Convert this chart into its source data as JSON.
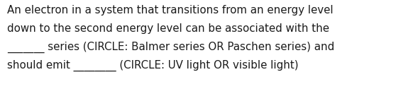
{
  "lines": [
    "An electron in a system that transitions from an energy level",
    "down to the second energy level can be associated with the",
    "_______ series (CIRCLE: Balmer series OR Paschen series) and",
    "should emit ________ (CIRCLE: UV light OR visible light)"
  ],
  "background_color": "#ffffff",
  "text_color": "#1a1a1a",
  "font_size": 10.8,
  "fig_width": 5.58,
  "fig_height": 1.26,
  "dpi": 100
}
